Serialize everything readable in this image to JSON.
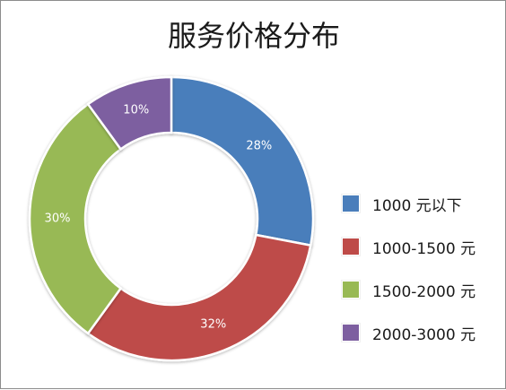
{
  "chart_data": {
    "type": "pie",
    "title": "服务价格分布",
    "categories": [
      "1000 元以下",
      "1000-1500 元",
      "1500-2000 元",
      "2000-3000 元"
    ],
    "values": [
      28,
      32,
      30,
      10
    ],
    "value_labels": [
      "28%",
      "32%",
      "30%",
      "10%"
    ],
    "colors": [
      "#4a7ebb",
      "#be4b48",
      "#98b954",
      "#7d5fa0"
    ],
    "donut": true,
    "legend_position": "right"
  }
}
